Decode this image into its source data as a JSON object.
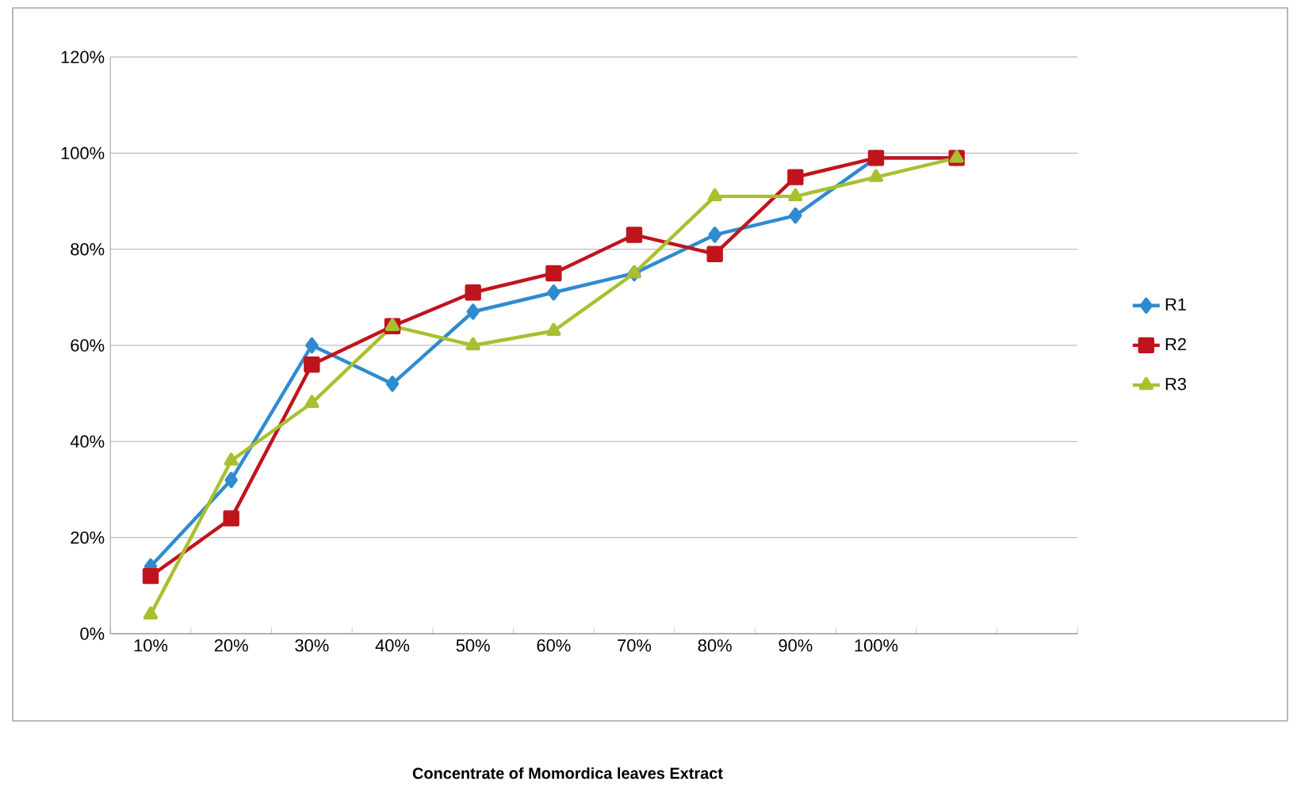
{
  "chart_data": {
    "type": "line",
    "annotations": [
      "Concentrate of Momordica leaves Extract"
    ],
    "categories": [
      "10%",
      "20%",
      "30%",
      "40%",
      "50%",
      "60%",
      "70%",
      "80%",
      "90%",
      "100%",
      null,
      null
    ],
    "series": [
      {
        "name": "R1",
        "color": "#2e8bd0",
        "marker": "diamond",
        "values": [
          14,
          32,
          60,
          52,
          67,
          71,
          75,
          83,
          87,
          99,
          99,
          null
        ]
      },
      {
        "name": "R2",
        "color": "#c0141c",
        "marker": "square",
        "values": [
          12,
          24,
          56,
          64,
          71,
          75,
          83,
          79,
          95,
          99,
          99,
          null
        ]
      },
      {
        "name": "R3",
        "color": "#a8c030",
        "marker": "triangle",
        "values": [
          4,
          36,
          48,
          64,
          60,
          63,
          75,
          91,
          91,
          95,
          99,
          null
        ]
      }
    ],
    "ylim": [
      0,
      120
    ],
    "yticks": [
      {
        "value": 0,
        "label": "0%"
      },
      {
        "value": 20,
        "label": "20%"
      },
      {
        "value": 40,
        "label": "40%"
      },
      {
        "value": 60,
        "label": "60%"
      },
      {
        "value": 80,
        "label": "80%"
      },
      {
        "value": 100,
        "label": "100%"
      },
      {
        "value": 120,
        "label": "120%"
      }
    ],
    "grid": "y",
    "legend": "right",
    "line_style": "solid"
  }
}
